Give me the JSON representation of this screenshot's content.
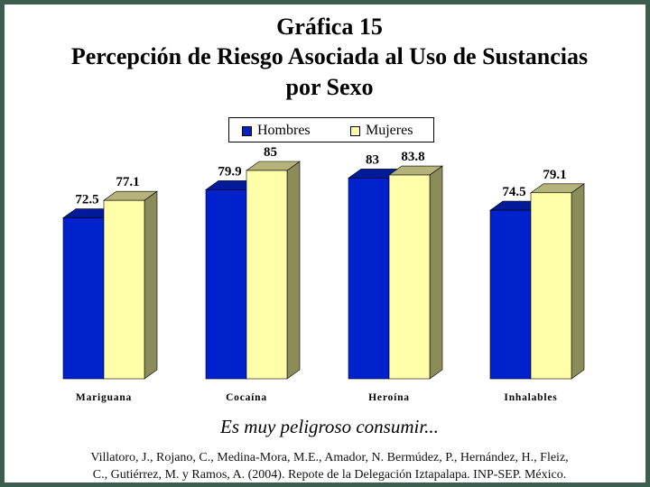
{
  "chart_data": {
    "type": "bar",
    "title_lines": [
      "Gráfica 15",
      "Percepción de Riesgo Asociada al Uso de Sustancias",
      "por Sexo"
    ],
    "categories": [
      "Mariguana",
      "Cocaína",
      "Heroína",
      "Inhalables"
    ],
    "series": [
      {
        "name": "Hombres",
        "values": [
          72.5,
          79.9,
          83,
          74.5
        ],
        "color": "#0022cc",
        "top_color": "#001a99",
        "side_color": "#001377"
      },
      {
        "name": "Mujeres",
        "values": [
          77.1,
          85,
          83.8,
          79.1
        ],
        "color": "#ffffaa",
        "top_color": "#b3b37a",
        "side_color": "#8c8c5a"
      }
    ],
    "data_labels": [
      [
        "72.5",
        "79.9",
        "83",
        "74.5"
      ],
      [
        "77.1",
        "85",
        "83.8",
        "79.1"
      ]
    ],
    "xlabel": "",
    "ylabel": "",
    "grid": false,
    "legend_position": "top-center"
  },
  "subtitle": "Es muy peligroso consumir...",
  "citation_line1": "Villatoro, J., Rojano, C., Medina-Mora, M.E., Amador, N. Bermúdez, P., Hernández, H., Fleiz,",
  "citation_line2": "C., Gutiérrez, M. y Ramos, A. (2004). Repote de la Delegación Iztapalapa. INP-SEP. México."
}
